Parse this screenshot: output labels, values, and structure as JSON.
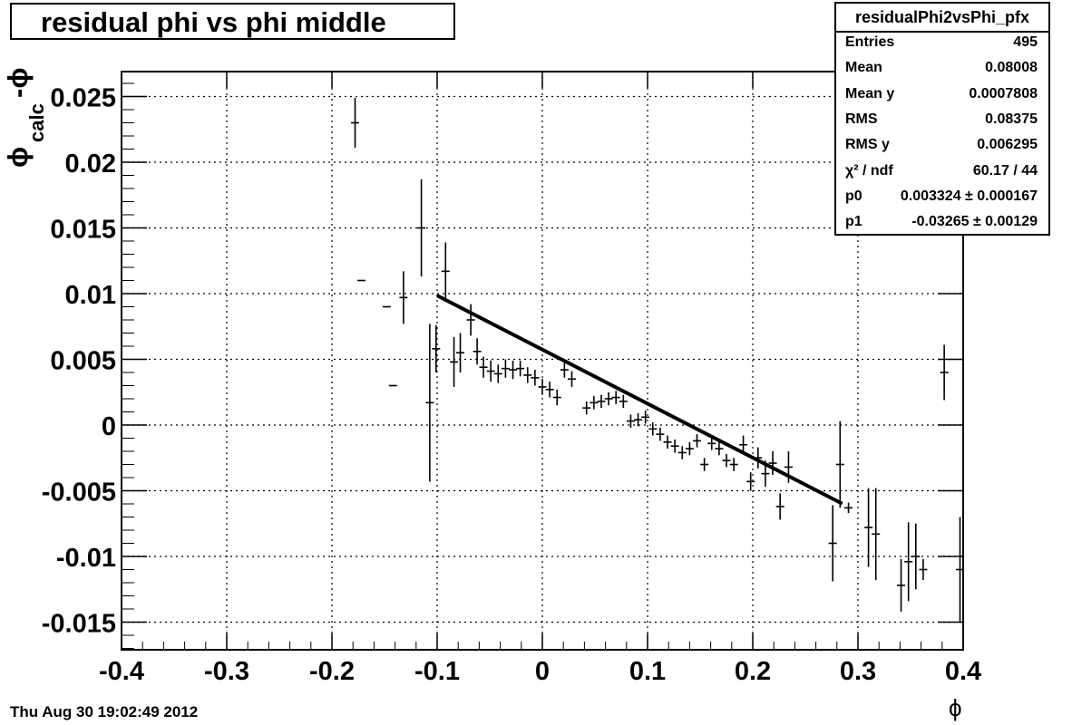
{
  "title": "residual phi vs phi middle",
  "stats": {
    "name": "residualPhi2vsPhi_pfx",
    "rows": [
      {
        "label": "Entries",
        "value": "495"
      },
      {
        "label": "Mean",
        "value": "0.08008"
      },
      {
        "label": "Mean y",
        "value": "0.0007808"
      },
      {
        "label": "RMS",
        "value": "0.08375"
      },
      {
        "label": "RMS y",
        "value": "0.006295"
      },
      {
        "label": "χ² / ndf",
        "value": "60.17 / 44"
      },
      {
        "label": "p0",
        "value": "0.003324 ± 0.000167"
      },
      {
        "label": "p1",
        "value": "-0.03265 ± 0.00129"
      }
    ]
  },
  "date": "Thu Aug 30 19:02:49 2012",
  "chart_data": {
    "type": "scatter",
    "title": "residual phi vs phi middle",
    "xlabel": "ϕ",
    "ylabel": "ϕcalc - ϕ",
    "xlim": [
      -0.4,
      0.4
    ],
    "ylim": [
      -0.0172,
      0.0269
    ],
    "grid": true,
    "x_ticks": [
      "-0.4",
      "-0.3",
      "-0.2",
      "-0.1",
      "0",
      "0.1",
      "0.2",
      "0.3",
      "0.4"
    ],
    "y_ticks": [
      "-0.015",
      "-0.01",
      "-0.005",
      "0",
      "0.005",
      "0.01",
      "0.015",
      "0.02",
      "0.025"
    ],
    "points": [
      {
        "x": -0.178,
        "y": 0.023,
        "yerr": 0.0019
      },
      {
        "x": -0.172,
        "y": 0.011,
        "yerr": 0.0
      },
      {
        "x": -0.148,
        "y": 0.009,
        "yerr": 0.0
      },
      {
        "x": -0.142,
        "y": 0.003,
        "yerr": 0.0
      },
      {
        "x": -0.132,
        "y": 0.0097,
        "yerr": 0.002
      },
      {
        "x": -0.115,
        "y": 0.015,
        "yerr": 0.0037
      },
      {
        "x": -0.107,
        "y": 0.0017,
        "yerr": 0.006
      },
      {
        "x": -0.101,
        "y": 0.0058,
        "yerr": 0.0018
      },
      {
        "x": -0.092,
        "y": 0.0117,
        "yerr": 0.0022
      },
      {
        "x": -0.084,
        "y": 0.0048,
        "yerr": 0.0019
      },
      {
        "x": -0.078,
        "y": 0.0055,
        "yerr": 0.0015
      },
      {
        "x": -0.068,
        "y": 0.008,
        "yerr": 0.0012
      },
      {
        "x": -0.062,
        "y": 0.0056,
        "yerr": 0.001
      },
      {
        "x": -0.056,
        "y": 0.0044,
        "yerr": 0.0008
      },
      {
        "x": -0.049,
        "y": 0.0041,
        "yerr": 0.0008
      },
      {
        "x": -0.042,
        "y": 0.0039,
        "yerr": 0.0007
      },
      {
        "x": -0.035,
        "y": 0.0043,
        "yerr": 0.0007
      },
      {
        "x": -0.028,
        "y": 0.0042,
        "yerr": 0.0007
      },
      {
        "x": -0.021,
        "y": 0.0043,
        "yerr": 0.0006
      },
      {
        "x": -0.014,
        "y": 0.0038,
        "yerr": 0.0006
      },
      {
        "x": -0.007,
        "y": 0.0036,
        "yerr": 0.0006
      },
      {
        "x": 0.0,
        "y": 0.0029,
        "yerr": 0.0006
      },
      {
        "x": 0.007,
        "y": 0.0027,
        "yerr": 0.0006
      },
      {
        "x": 0.014,
        "y": 0.0021,
        "yerr": 0.0006
      },
      {
        "x": 0.021,
        "y": 0.0042,
        "yerr": 0.0006
      },
      {
        "x": 0.028,
        "y": 0.0035,
        "yerr": 0.0006
      },
      {
        "x": 0.042,
        "y": 0.0013,
        "yerr": 0.0005
      },
      {
        "x": 0.049,
        "y": 0.0017,
        "yerr": 0.0005
      },
      {
        "x": 0.056,
        "y": 0.0018,
        "yerr": 0.0005
      },
      {
        "x": 0.063,
        "y": 0.002,
        "yerr": 0.0005
      },
      {
        "x": 0.07,
        "y": 0.0021,
        "yerr": 0.0005
      },
      {
        "x": 0.077,
        "y": 0.0018,
        "yerr": 0.0005
      },
      {
        "x": 0.084,
        "y": 0.0003,
        "yerr": 0.0005
      },
      {
        "x": 0.091,
        "y": 0.0004,
        "yerr": 0.0005
      },
      {
        "x": 0.098,
        "y": 0.0006,
        "yerr": 0.0005
      },
      {
        "x": 0.105,
        "y": -0.0003,
        "yerr": 0.0005
      },
      {
        "x": 0.112,
        "y": -0.0007,
        "yerr": 0.0005
      },
      {
        "x": 0.119,
        "y": -0.0013,
        "yerr": 0.0005
      },
      {
        "x": 0.126,
        "y": -0.0016,
        "yerr": 0.0005
      },
      {
        "x": 0.133,
        "y": -0.0021,
        "yerr": 0.0005
      },
      {
        "x": 0.14,
        "y": -0.0018,
        "yerr": 0.0005
      },
      {
        "x": 0.147,
        "y": -0.0012,
        "yerr": 0.0005
      },
      {
        "x": 0.154,
        "y": -0.003,
        "yerr": 0.0005
      },
      {
        "x": 0.161,
        "y": -0.0014,
        "yerr": 0.0005
      },
      {
        "x": 0.168,
        "y": -0.0018,
        "yerr": 0.0005
      },
      {
        "x": 0.175,
        "y": -0.0027,
        "yerr": 0.0005
      },
      {
        "x": 0.182,
        "y": -0.003,
        "yerr": 0.0005
      },
      {
        "x": 0.191,
        "y": -0.0015,
        "yerr": 0.0007
      },
      {
        "x": 0.198,
        "y": -0.0043,
        "yerr": 0.0007
      },
      {
        "x": 0.205,
        "y": -0.0025,
        "yerr": 0.0008
      },
      {
        "x": 0.212,
        "y": -0.0037,
        "yerr": 0.001
      },
      {
        "x": 0.219,
        "y": -0.0029,
        "yerr": 0.0009
      },
      {
        "x": 0.226,
        "y": -0.0062,
        "yerr": 0.001
      },
      {
        "x": 0.234,
        "y": -0.0032,
        "yerr": 0.0012
      },
      {
        "x": 0.276,
        "y": -0.009,
        "yerr": 0.0029
      },
      {
        "x": 0.283,
        "y": -0.003,
        "yerr": 0.0033
      },
      {
        "x": 0.291,
        "y": -0.0063,
        "yerr": 0.0004
      },
      {
        "x": 0.31,
        "y": -0.0078,
        "yerr": 0.003
      },
      {
        "x": 0.317,
        "y": -0.0083,
        "yerr": 0.0035
      },
      {
        "x": 0.341,
        "y": -0.0122,
        "yerr": 0.002
      },
      {
        "x": 0.348,
        "y": -0.0104,
        "yerr": 0.003
      },
      {
        "x": 0.355,
        "y": -0.01,
        "yerr": 0.0025
      },
      {
        "x": 0.362,
        "y": -0.011,
        "yerr": 0.0008
      },
      {
        "x": 0.382,
        "y": 0.004,
        "yerr": 0.0021
      },
      {
        "x": 0.397,
        "y": -0.011,
        "yerr": 0.004
      }
    ],
    "fit": {
      "x_range": [
        -0.1,
        0.285
      ],
      "p0": 0.003324,
      "p1": -0.03265
    }
  }
}
